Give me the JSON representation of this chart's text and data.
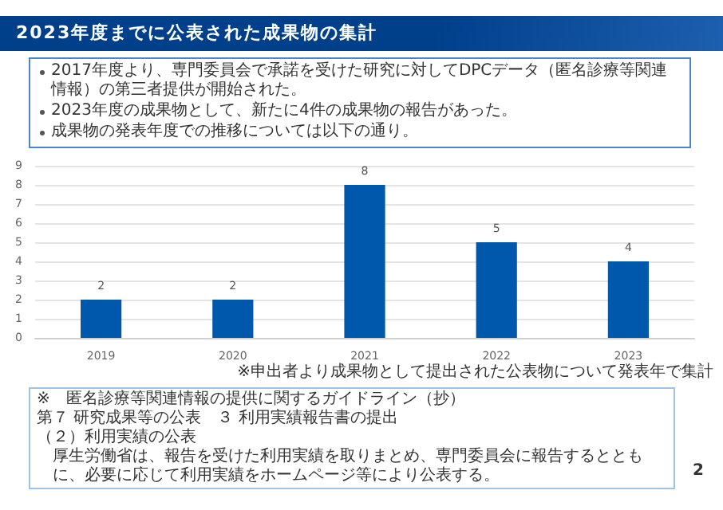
{
  "chart_data": {
    "type": "bar",
    "title": "2023年度までに公表された成果物の集計",
    "categories": [
      "2019",
      "2020",
      "2021",
      "2022",
      "2023"
    ],
    "values": [
      2,
      2,
      8,
      5,
      4
    ],
    "color": "#0058ac",
    "ylim": [
      0,
      9
    ],
    "yticks": [
      0,
      1,
      2,
      3,
      4,
      5,
      6,
      7,
      8,
      9
    ],
    "grid": "y",
    "data_labels": true,
    "annotations": [
      "2017年度より、専門委員会で承諾を受けた研究に対してDPCデータ（匿名診療等関連情報）の第三者提供が開始された。",
      "2023年度の成果物として、新たに4件の成果物の報告があった。",
      "成果物の発表年度での推移については以下の通り。",
      "※申出者より成果物として提出された公表物について発表年で集計",
      "※　匿名診療等関連情報の提供に関するガイドライン（抄）",
      "第７ 研究成果等の公表　３ 利用実績報告書の提出",
      "（２）利用実績の公表",
      "厚生労働省は、報告を受けた利用実績を取りまとめ、専門委員会に報告するとともに、必要に応じて利用実績をホームページ等により公表する。",
      "2"
    ]
  }
}
